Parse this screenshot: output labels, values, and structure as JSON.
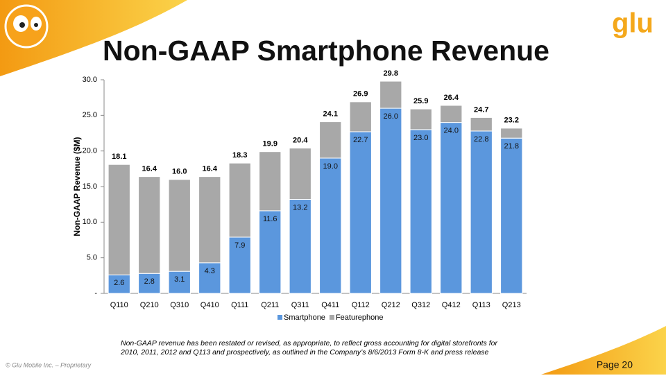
{
  "title": "Non-GAAP Smartphone Revenue",
  "logo": "glu",
  "footnote": [
    "Non-GAAP revenue has been restated or revised, as appropriate, to reflect gross accounting for digital storefronts for",
    "2010, 2011, 2012  and Q113 and prospectively, as outlined in the Company’s 8/6/2013 Form 8-K and press release"
  ],
  "footer": "© Glu Mobile Inc. – Proprietary",
  "page": "Page 20",
  "chart_data": {
    "type": "stacked_bar",
    "y_label": "Non-GAAP Revenue ($M)",
    "categories": [
      "Q110",
      "Q210",
      "Q310",
      "Q410",
      "Q111",
      "Q211",
      "Q311",
      "Q411",
      "Q112",
      "Q212",
      "Q312",
      "Q412",
      "Q113",
      "Q213"
    ],
    "series": [
      {
        "name": "Smartphone",
        "color": "#5b97dd",
        "values": [
          2.6,
          2.8,
          3.1,
          4.3,
          7.9,
          11.6,
          13.2,
          19.0,
          22.7,
          26.0,
          23.0,
          24.0,
          22.8,
          21.8
        ],
        "value_labels": [
          "2.6",
          "2.8",
          "3.1",
          "4.3",
          "7.9",
          "11.6",
          "13.2",
          "19.0",
          "22.7",
          "26.0",
          "23.0",
          "24.0",
          "22.8",
          "21.8"
        ]
      },
      {
        "name": "Featurephone",
        "color": "#a8a8a8",
        "values": [
          15.5,
          13.6,
          12.9,
          12.1,
          10.4,
          8.3,
          7.2,
          5.1,
          4.2,
          3.8,
          2.9,
          2.4,
          1.9,
          1.4
        ]
      }
    ],
    "totals": [
      18.1,
      16.4,
      16.0,
      16.4,
      18.3,
      19.9,
      20.4,
      24.1,
      26.9,
      29.8,
      25.9,
      26.4,
      24.7,
      23.2
    ],
    "total_labels": [
      "18.1",
      "16.4",
      "16.0",
      "16.4",
      "18.3",
      "19.9",
      "20.4",
      "24.1",
      "26.9",
      "29.8",
      "25.9",
      "26.4",
      "24.7",
      "23.2"
    ],
    "ylim": [
      0,
      30
    ],
    "yticks": [
      {
        "value": 0,
        "label": "-"
      },
      {
        "value": 5,
        "label": "5.0"
      },
      {
        "value": 10,
        "label": "10.0"
      },
      {
        "value": 15,
        "label": "15.0"
      },
      {
        "value": 20,
        "label": "20.0"
      },
      {
        "value": 25,
        "label": "25.0"
      },
      {
        "value": 30,
        "label": "30.0"
      }
    ],
    "legend": "bottom"
  }
}
